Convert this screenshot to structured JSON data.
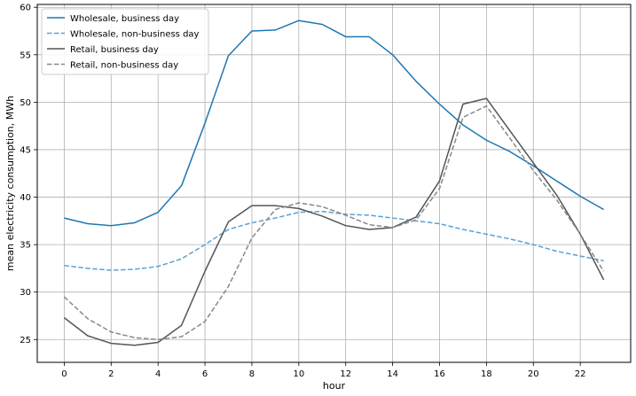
{
  "chart_data": {
    "type": "line",
    "title": "",
    "xlabel": "hour",
    "ylabel": "mean electricity consumption, MWh",
    "x": [
      0,
      1,
      2,
      3,
      4,
      5,
      6,
      7,
      8,
      9,
      10,
      11,
      12,
      13,
      14,
      15,
      16,
      17,
      18,
      19,
      20,
      21,
      22,
      23
    ],
    "xlim": [
      -1.15,
      24.15
    ],
    "ylim": [
      22.6,
      60.3
    ],
    "xticks": [
      0,
      2,
      4,
      6,
      8,
      10,
      12,
      14,
      16,
      18,
      20,
      22
    ],
    "yticks": [
      25,
      30,
      35,
      40,
      45,
      50,
      55,
      60
    ],
    "grid": true,
    "legend_position": "top-left",
    "series": [
      {
        "name": "Wholesale, business day",
        "color": "#1f77b4",
        "dash": "solid",
        "values": [
          37.8,
          37.2,
          37.0,
          37.3,
          38.4,
          41.2,
          47.8,
          54.9,
          57.5,
          57.6,
          58.6,
          58.2,
          56.9,
          56.9,
          55.0,
          52.2,
          49.8,
          47.6,
          46.0,
          44.8,
          43.3,
          41.7,
          40.1,
          38.7
        ]
      },
      {
        "name": "Wholesale, non-business day",
        "color": "#5aa2d5",
        "dash": "dashed",
        "values": [
          32.8,
          32.5,
          32.3,
          32.4,
          32.7,
          33.5,
          35.0,
          36.6,
          37.3,
          37.8,
          38.4,
          38.5,
          38.2,
          38.1,
          37.8,
          37.5,
          37.2,
          36.6,
          36.1,
          35.6,
          35.0,
          34.3,
          33.8,
          33.3
        ]
      },
      {
        "name": "Retail, business day",
        "color": "#555555",
        "dash": "solid",
        "values": [
          27.3,
          25.4,
          24.6,
          24.4,
          24.7,
          26.5,
          32.2,
          37.4,
          39.1,
          39.1,
          38.8,
          38.0,
          37.0,
          36.6,
          36.8,
          37.9,
          41.7,
          49.8,
          50.4,
          47.0,
          43.6,
          40.2,
          36.1,
          31.3
        ]
      },
      {
        "name": "Retail, non-business day",
        "color": "#888888",
        "dash": "dashed",
        "values": [
          29.5,
          27.2,
          25.8,
          25.2,
          25.0,
          25.3,
          26.9,
          30.6,
          35.7,
          38.7,
          39.4,
          39.0,
          38.1,
          37.1,
          36.8,
          37.6,
          40.9,
          48.4,
          49.6,
          46.2,
          42.8,
          39.7,
          36.1,
          32.2
        ]
      }
    ]
  }
}
